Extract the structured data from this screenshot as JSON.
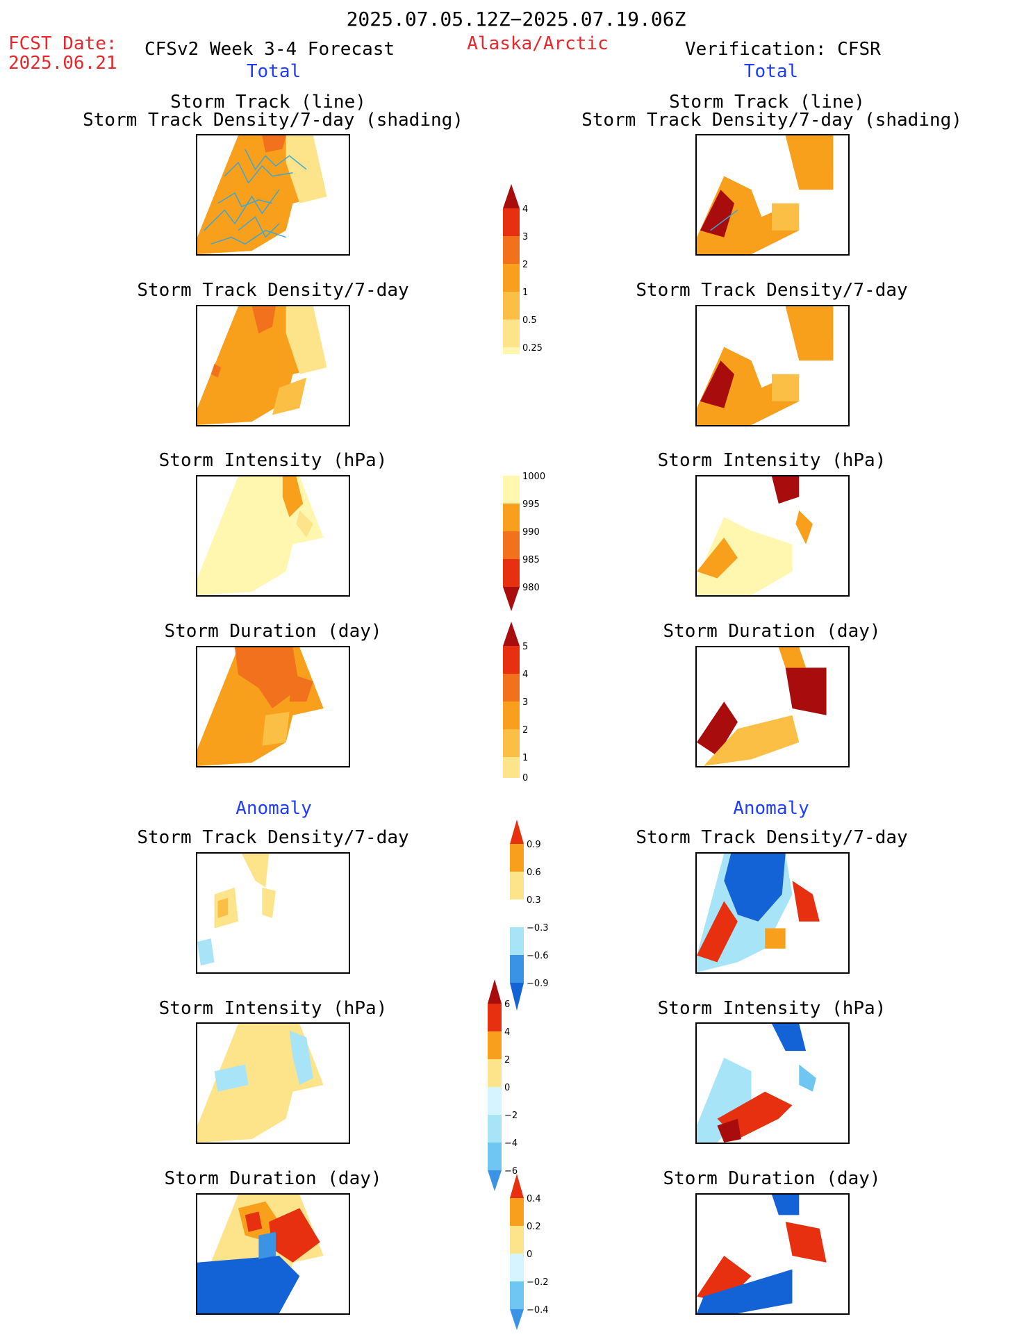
{
  "header": {
    "period": "2025.07.05.12Z−2025.07.19.06Z",
    "fcst_date_label": "FCST Date:",
    "fcst_date_value": "2025.06.21",
    "left_title": "CFSv2 Week 3-4 Forecast",
    "region": "Alaska/Arctic",
    "right_title": "Verification: CFSR"
  },
  "sections": {
    "total": "Total",
    "anomaly": "Anomaly"
  },
  "panel_titles": {
    "track_line": "Storm Track (line)",
    "track_shading": "Storm Track Density/7-day (shading)",
    "track_density": "Storm Track Density/7-day",
    "intensity": "Storm Intensity (hPa)",
    "duration": "Storm Duration (day)"
  },
  "colorbars": {
    "density": [
      "4",
      "3",
      "2",
      "1",
      "0.5",
      "0.25"
    ],
    "intensity": [
      "1000",
      "995",
      "990",
      "985",
      "980"
    ],
    "duration": [
      "5",
      "4",
      "3",
      "2",
      "1",
      "0"
    ],
    "density_anom": [
      "0.9",
      "0.6",
      "0.3",
      "−0.3",
      "−0.6",
      "−0.9"
    ],
    "intensity_anom": [
      "6",
      "4",
      "2",
      "0",
      "−2",
      "−4",
      "−6"
    ],
    "duration_anom": [
      "0.4",
      "0.2",
      "0",
      "−0.2",
      "−0.4"
    ]
  },
  "colors": {
    "warm": [
      "#fff7b0",
      "#fde48a",
      "#fbbf45",
      "#f8a01c",
      "#f2711c",
      "#e6300f",
      "#a80c0c"
    ],
    "cool": [
      "#d6f4ff",
      "#a8e4f8",
      "#6fc6f2",
      "#3b93e6",
      "#1463d6"
    ],
    "track_line": "#3aa6d6",
    "title_red": "#e8262b",
    "section_blue": "#1f3cff"
  }
}
